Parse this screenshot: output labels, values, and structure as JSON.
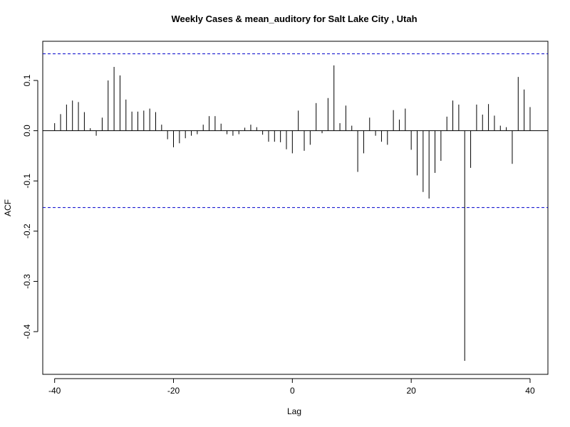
{
  "chart_data": {
    "type": "bar",
    "title": "Weekly Cases & mean_auditory for Salt Lake City , Utah",
    "xlabel": "Lag",
    "ylabel": "ACF",
    "xlim": [
      -42,
      43
    ],
    "ylim": [
      -0.485,
      0.178
    ],
    "x_ticks": [
      -40,
      -20,
      0,
      20,
      40
    ],
    "x_tick_labels": [
      "-40",
      "-20",
      "0",
      "20",
      "40"
    ],
    "y_ticks": [
      -0.4,
      -0.3,
      -0.2,
      -0.1,
      0.0,
      0.1
    ],
    "y_tick_labels": [
      "-0.4",
      "-0.3",
      "-0.2",
      "-0.1",
      "0.0",
      "0.1"
    ],
    "confidence_bound": 0.153,
    "grid": false,
    "legend": "none",
    "colors": {
      "bars": "#000000",
      "zero_line": "#000000",
      "confidence_lines": "#0000cc"
    },
    "lags": [
      -40,
      -39,
      -38,
      -37,
      -36,
      -35,
      -34,
      -33,
      -32,
      -31,
      -30,
      -29,
      -28,
      -27,
      -26,
      -25,
      -24,
      -23,
      -22,
      -21,
      -20,
      -19,
      -18,
      -17,
      -16,
      -15,
      -14,
      -13,
      -12,
      -11,
      -10,
      -9,
      -8,
      -7,
      -6,
      -5,
      -4,
      -3,
      -2,
      -1,
      0,
      1,
      2,
      3,
      4,
      5,
      6,
      7,
      8,
      9,
      10,
      11,
      12,
      13,
      14,
      15,
      16,
      17,
      18,
      19,
      20,
      21,
      22,
      23,
      24,
      25,
      26,
      27,
      28,
      29,
      30,
      31,
      32,
      33,
      34,
      35,
      36,
      37,
      38,
      39,
      40
    ],
    "values": [
      0.015,
      0.033,
      0.052,
      0.06,
      0.057,
      0.037,
      0.005,
      -0.01,
      0.026,
      0.1,
      0.127,
      0.11,
      0.062,
      0.038,
      0.038,
      0.04,
      0.044,
      0.037,
      0.012,
      -0.017,
      -0.033,
      -0.025,
      -0.015,
      -0.01,
      -0.007,
      0.012,
      0.029,
      0.029,
      0.014,
      -0.007,
      -0.01,
      -0.007,
      0.006,
      0.012,
      0.007,
      -0.008,
      -0.022,
      -0.022,
      -0.023,
      -0.037,
      -0.045,
      0.04,
      -0.04,
      -0.028,
      0.055,
      -0.005,
      0.065,
      0.13,
      0.015,
      0.05,
      0.01,
      -0.082,
      -0.045,
      0.026,
      -0.01,
      -0.022,
      -0.028,
      0.041,
      0.022,
      0.044,
      -0.038,
      -0.089,
      -0.122,
      -0.135,
      -0.084,
      -0.06,
      0.028,
      0.06,
      0.052,
      -0.458,
      -0.074,
      0.052,
      0.032,
      0.053,
      0.03,
      0.01,
      0.007,
      -0.066,
      0.107,
      0.082,
      0.047
    ]
  }
}
